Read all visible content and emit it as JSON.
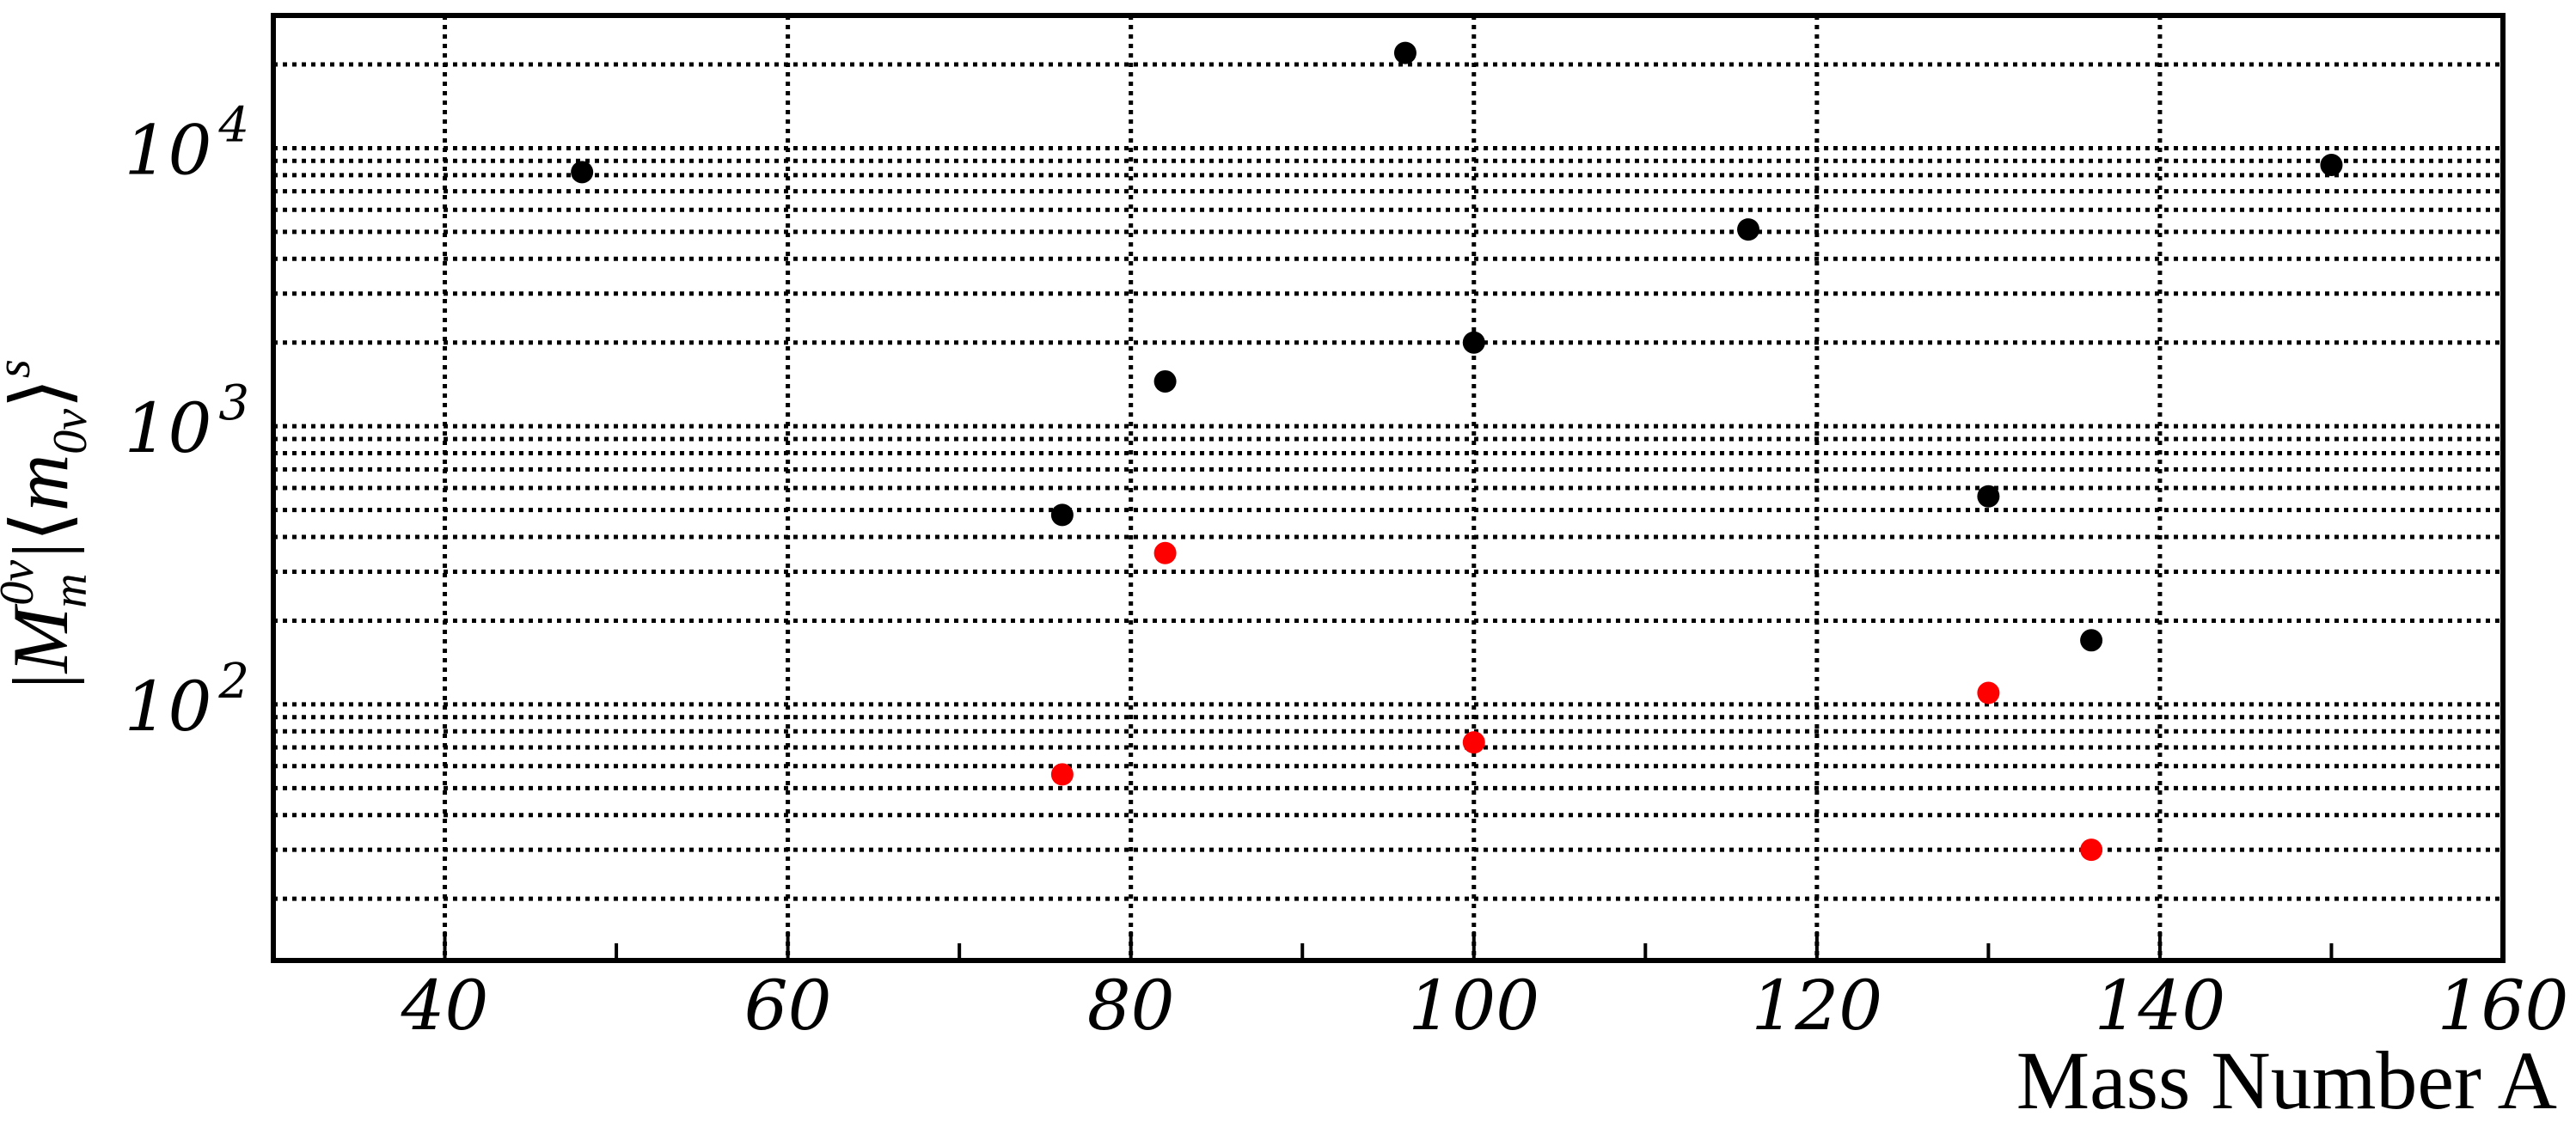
{
  "chart_data": {
    "type": "scatter",
    "title": "",
    "xlabel": "Mass Number A",
    "ylabel": "|M^{0v}_m|⟨m_{0v}⟩^s",
    "xlim": [
      30,
      160
    ],
    "ylim": [
      12,
      30000
    ],
    "y_scale": "log",
    "grid": true,
    "x_ticks": [
      40,
      60,
      80,
      100,
      120,
      140,
      160
    ],
    "y_ticks": [
      {
        "value": 100,
        "base": "10",
        "exp": "2"
      },
      {
        "value": 1000,
        "base": "10",
        "exp": "3"
      },
      {
        "value": 10000,
        "base": "10",
        "exp": "4"
      }
    ],
    "colors": {
      "series1": "#000000",
      "series2": "#ff0000"
    },
    "series": [
      {
        "points": [
          {
            "x": 48,
            "y": 8200
          },
          {
            "x": 76,
            "y": 480
          },
          {
            "x": 82,
            "y": 1450
          },
          {
            "x": 96,
            "y": 22000
          },
          {
            "x": 100,
            "y": 2000
          },
          {
            "x": 116,
            "y": 5100
          },
          {
            "x": 130,
            "y": 560
          },
          {
            "x": 136,
            "y": 170
          },
          {
            "x": 150,
            "y": 8700
          }
        ]
      },
      {
        "points": [
          {
            "x": 76,
            "y": 56
          },
          {
            "x": 82,
            "y": 350
          },
          {
            "x": 100,
            "y": 73
          },
          {
            "x": 130,
            "y": 110
          },
          {
            "x": 136,
            "y": 30
          }
        ]
      }
    ]
  }
}
